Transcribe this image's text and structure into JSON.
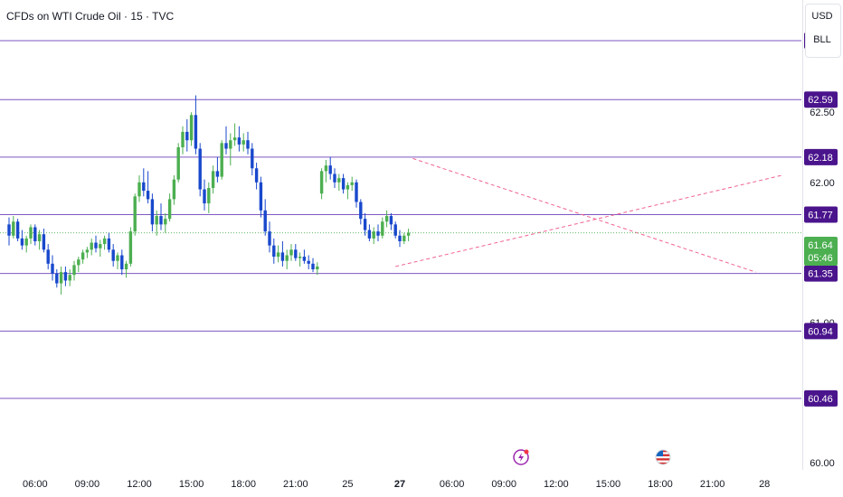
{
  "header": {
    "title": "CFDs on WTI Crude Oil · 15 · TVC",
    "currency_label": "USD",
    "unit_label": "BLL"
  },
  "colors": {
    "up": "#4caf50",
    "down": "#1848cc",
    "level_line": "#7e57c2",
    "level_label_bg": "#4a148c",
    "trend_line": "#f06292",
    "current_price_bg": "#4caf50"
  },
  "icons": [
    "lightning-event-icon",
    "us-flag-icon"
  ],
  "chart_data": {
    "type": "candlestick",
    "title": "CFDs on WTI Crude Oil · 15 · TVC",
    "ylim": [
      59.95,
      63.3
    ],
    "y_ticks": [
      62.5,
      62.0,
      61.0,
      60.0
    ],
    "y_tick_labels": [
      "62.50",
      "62.00",
      "61.00",
      "60.00"
    ],
    "x_ticks": [
      "06:00",
      "09:00",
      "12:00",
      "15:00",
      "18:00",
      "21:00",
      "25",
      "27",
      "06:00",
      "09:00",
      "12:00",
      "15:00",
      "18:00",
      "21:00",
      "28"
    ],
    "x_tick_index": [
      6,
      18,
      30,
      42,
      54,
      66,
      78,
      90,
      102,
      114,
      126,
      138,
      150,
      162,
      174
    ],
    "bold_ticks": [
      "27"
    ],
    "grid": false,
    "horizontal_levels": [
      {
        "value": 63.01,
        "label": "63.01"
      },
      {
        "value": 62.59,
        "label": "62.59"
      },
      {
        "value": 62.18,
        "label": "62.18"
      },
      {
        "value": 61.77,
        "label": "61.77"
      },
      {
        "value": 61.35,
        "label": "61.35"
      },
      {
        "value": 60.94,
        "label": "60.94"
      },
      {
        "value": 60.46,
        "label": "60.46"
      }
    ],
    "current_price": {
      "label": "61.64",
      "countdown": "05:46",
      "value": 61.64
    },
    "trend_lines": [
      {
        "from": [
          93,
          62.17
        ],
        "to": [
          172,
          61.36
        ]
      },
      {
        "from": [
          89,
          61.4
        ],
        "to": [
          178,
          62.05
        ]
      }
    ],
    "ohlc": [
      [
        61.7,
        61.75,
        61.55,
        61.62
      ],
      [
        61.62,
        61.76,
        61.6,
        61.72
      ],
      [
        61.72,
        61.74,
        61.58,
        61.6
      ],
      [
        61.6,
        61.66,
        61.52,
        61.55
      ],
      [
        61.55,
        61.62,
        61.5,
        61.6
      ],
      [
        61.6,
        61.7,
        61.56,
        61.68
      ],
      [
        61.68,
        61.7,
        61.55,
        61.58
      ],
      [
        61.58,
        61.66,
        61.52,
        61.63
      ],
      [
        61.63,
        61.67,
        61.5,
        61.52
      ],
      [
        61.52,
        61.56,
        61.38,
        61.42
      ],
      [
        61.42,
        61.48,
        61.3,
        61.35
      ],
      [
        61.35,
        61.38,
        61.25,
        61.28
      ],
      [
        61.28,
        61.4,
        61.2,
        61.36
      ],
      [
        61.36,
        61.4,
        61.26,
        61.3
      ],
      [
        61.3,
        61.38,
        61.26,
        61.34
      ],
      [
        61.34,
        61.44,
        61.3,
        61.41
      ],
      [
        61.41,
        61.47,
        61.36,
        61.45
      ],
      [
        61.45,
        61.52,
        61.42,
        61.5
      ],
      [
        61.5,
        61.54,
        61.46,
        61.52
      ],
      [
        61.52,
        61.6,
        61.48,
        61.57
      ],
      [
        61.57,
        61.62,
        61.5,
        61.53
      ],
      [
        61.53,
        61.59,
        61.47,
        61.56
      ],
      [
        61.56,
        61.62,
        61.52,
        61.6
      ],
      [
        61.6,
        61.64,
        61.5,
        61.52
      ],
      [
        61.52,
        61.56,
        61.4,
        61.44
      ],
      [
        61.44,
        61.5,
        61.38,
        61.48
      ],
      [
        61.48,
        61.52,
        61.34,
        61.38
      ],
      [
        61.38,
        61.44,
        61.32,
        61.42
      ],
      [
        61.42,
        61.68,
        61.4,
        61.65
      ],
      [
        61.65,
        61.92,
        61.62,
        61.9
      ],
      [
        61.9,
        62.05,
        61.86,
        62.0
      ],
      [
        62.0,
        62.1,
        61.9,
        61.94
      ],
      [
        61.94,
        62.08,
        61.85,
        61.88
      ],
      [
        61.88,
        61.92,
        61.65,
        61.7
      ],
      [
        61.7,
        61.8,
        61.62,
        61.76
      ],
      [
        61.76,
        61.85,
        61.66,
        61.7
      ],
      [
        61.7,
        61.78,
        61.64,
        61.74
      ],
      [
        61.74,
        61.92,
        61.72,
        61.88
      ],
      [
        61.88,
        62.05,
        61.84,
        62.02
      ],
      [
        62.02,
        62.28,
        62.0,
        62.25
      ],
      [
        62.25,
        62.4,
        62.2,
        62.36
      ],
      [
        62.36,
        62.45,
        62.22,
        62.3
      ],
      [
        62.3,
        62.5,
        62.26,
        62.48
      ],
      [
        62.48,
        62.62,
        62.2,
        62.24
      ],
      [
        62.24,
        62.28,
        61.9,
        61.95
      ],
      [
        61.95,
        62.02,
        61.8,
        61.85
      ],
      [
        61.85,
        62.0,
        61.78,
        61.96
      ],
      [
        61.96,
        62.12,
        61.92,
        62.08
      ],
      [
        62.08,
        62.18,
        62.0,
        62.04
      ],
      [
        62.04,
        62.3,
        62.02,
        62.28
      ],
      [
        62.28,
        62.4,
        62.2,
        62.24
      ],
      [
        62.24,
        62.35,
        62.12,
        62.3
      ],
      [
        62.3,
        62.42,
        62.26,
        62.32
      ],
      [
        62.32,
        62.4,
        62.22,
        62.27
      ],
      [
        62.27,
        62.35,
        62.22,
        62.3
      ],
      [
        62.3,
        62.36,
        62.2,
        62.24
      ],
      [
        62.24,
        62.28,
        62.05,
        62.1
      ],
      [
        62.1,
        62.14,
        61.95,
        62.0
      ],
      [
        62.0,
        62.04,
        61.75,
        61.8
      ],
      [
        61.8,
        61.88,
        61.62,
        61.65
      ],
      [
        61.65,
        61.72,
        61.5,
        61.55
      ],
      [
        61.55,
        61.6,
        61.42,
        61.47
      ],
      [
        61.47,
        61.55,
        61.43,
        61.5
      ],
      [
        61.5,
        61.58,
        61.4,
        61.44
      ],
      [
        61.44,
        61.52,
        61.38,
        61.48
      ],
      [
        61.48,
        61.56,
        61.44,
        61.52
      ],
      [
        61.52,
        61.56,
        61.44,
        61.46
      ],
      [
        61.46,
        61.5,
        61.4,
        61.47
      ],
      [
        61.47,
        61.52,
        61.42,
        61.44
      ],
      [
        61.44,
        61.48,
        61.38,
        61.42
      ],
      [
        61.42,
        61.46,
        61.36,
        61.38
      ],
      [
        61.38,
        61.43,
        61.34,
        61.4
      ],
      [
        61.92,
        62.1,
        61.88,
        62.08
      ],
      [
        62.08,
        62.16,
        62.0,
        62.12
      ],
      [
        62.12,
        62.18,
        62.02,
        62.06
      ],
      [
        62.06,
        62.1,
        61.96,
        62.0
      ],
      [
        62.0,
        62.06,
        61.94,
        62.03
      ],
      [
        62.03,
        62.06,
        61.92,
        61.95
      ],
      [
        61.95,
        62.0,
        61.88,
        61.98
      ],
      [
        61.98,
        62.04,
        61.94,
        62.0
      ],
      [
        62.0,
        62.02,
        61.82,
        61.86
      ],
      [
        61.86,
        61.88,
        61.7,
        61.74
      ],
      [
        61.74,
        61.78,
        61.62,
        61.66
      ],
      [
        61.66,
        61.7,
        61.58,
        61.6
      ],
      [
        61.6,
        61.68,
        61.56,
        61.65
      ],
      [
        61.65,
        61.7,
        61.58,
        61.62
      ],
      [
        61.62,
        61.75,
        61.6,
        61.72
      ],
      [
        61.72,
        61.8,
        61.68,
        61.76
      ],
      [
        61.76,
        61.78,
        61.66,
        61.7
      ],
      [
        61.7,
        61.72,
        61.6,
        61.62
      ],
      [
        61.62,
        61.66,
        61.54,
        61.58
      ],
      [
        61.58,
        61.64,
        61.56,
        61.62
      ],
      [
        61.62,
        61.67,
        61.58,
        61.64
      ]
    ]
  }
}
